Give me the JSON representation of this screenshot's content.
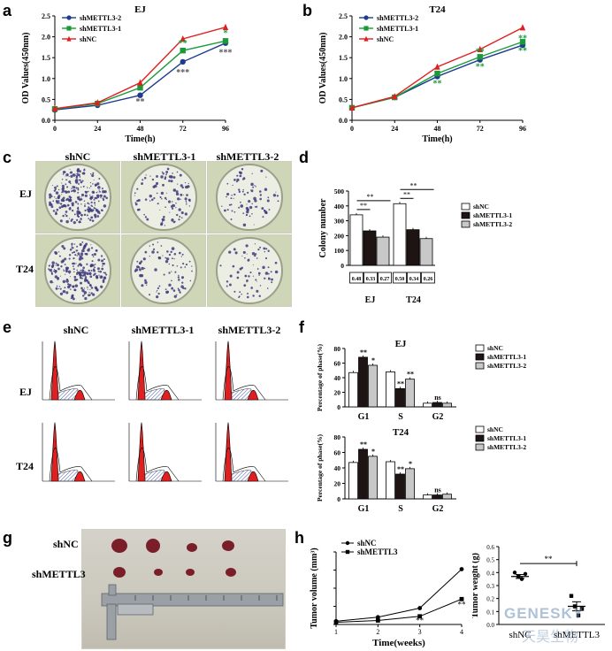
{
  "panels": {
    "a": {
      "label": "a"
    },
    "b": {
      "label": "b"
    },
    "c": {
      "label": "c",
      "cols": [
        "shNC",
        "shMETTL3-1",
        "shMETTL3-2"
      ],
      "rows": [
        "EJ",
        "T24"
      ]
    },
    "d": {
      "label": "d"
    },
    "e": {
      "label": "e",
      "cols": [
        "shNC",
        "shMETTL3-1",
        "shMETTL3-2"
      ],
      "rows": [
        "EJ",
        "T24"
      ]
    },
    "f": {
      "label": "f"
    },
    "g": {
      "label": "g",
      "rows": [
        "shNC",
        "shMETTL3"
      ]
    },
    "h": {
      "label": "h"
    }
  },
  "watermark": {
    "text": "GENESKY",
    "subtext": "天昊生物"
  },
  "chart_data": [
    {
      "id": "a",
      "type": "line",
      "title": "EJ",
      "xlabel": "Time(h)",
      "ylabel": "OD Values(450nm)",
      "x": [
        0,
        24,
        48,
        72,
        96
      ],
      "xlim": [
        0,
        96
      ],
      "ylim": [
        0,
        2.5
      ],
      "yticks": [
        "0.0",
        "0.5",
        "1.0",
        "1.5",
        "2.0",
        "2.5"
      ],
      "legend": "top-left",
      "series": [
        {
          "name": "shMETTL3-2",
          "color": "#1f3c8f",
          "marker": "circle",
          "values": [
            0.25,
            0.36,
            0.6,
            1.4,
            1.85
          ]
        },
        {
          "name": "shMETTL3-1",
          "color": "#1a9b3a",
          "marker": "square",
          "values": [
            0.27,
            0.4,
            0.78,
            1.67,
            1.9
          ]
        },
        {
          "name": "shNC",
          "color": "#e0201f",
          "marker": "triangle",
          "values": [
            0.28,
            0.42,
            0.9,
            1.95,
            2.23
          ]
        }
      ],
      "annotations": [
        {
          "x": 48,
          "y": 0.38,
          "text": "**",
          "color": "#555555"
        },
        {
          "x": 72,
          "y": 1.78,
          "text": "**",
          "color": "#1a9b3a"
        },
        {
          "x": 72,
          "y": 1.08,
          "text": "***",
          "color": "#555555"
        },
        {
          "x": 96,
          "y": 2.02,
          "text": "*",
          "color": "#1a9b3a"
        },
        {
          "x": 96,
          "y": 1.56,
          "text": "***",
          "color": "#555555"
        }
      ]
    },
    {
      "id": "b",
      "type": "line",
      "title": "T24",
      "xlabel": "Time(h)",
      "ylabel": "OD Values(450nm)",
      "x": [
        0,
        24,
        48,
        72,
        96
      ],
      "xlim": [
        0,
        96
      ],
      "ylim": [
        0,
        2.5
      ],
      "yticks": [
        "0.0",
        "0.5",
        "1.0",
        "1.5",
        "2.0",
        "2.5"
      ],
      "legend": "top-left",
      "series": [
        {
          "name": "shMETTL3-2",
          "color": "#1f3c8f",
          "marker": "circle",
          "values": [
            0.3,
            0.55,
            1.05,
            1.45,
            1.8
          ]
        },
        {
          "name": "shMETTL3-1",
          "color": "#1a9b3a",
          "marker": "square",
          "values": [
            0.3,
            0.55,
            1.12,
            1.52,
            1.88
          ]
        },
        {
          "name": "shNC",
          "color": "#e0201f",
          "marker": "triangle",
          "values": [
            0.3,
            0.57,
            1.28,
            1.7,
            2.22
          ]
        }
      ],
      "annotations": [
        {
          "x": 48,
          "y": 0.82,
          "text": "**",
          "color": "#1a9b3a"
        },
        {
          "x": 72,
          "y": 1.58,
          "text": "**",
          "color": "#1a9b3a"
        },
        {
          "x": 72,
          "y": 1.22,
          "text": "**",
          "color": "#1a9b3a"
        },
        {
          "x": 96,
          "y": 1.9,
          "text": "**",
          "color": "#1a9b3a"
        },
        {
          "x": 96,
          "y": 1.6,
          "text": "**",
          "color": "#1a9b3a"
        }
      ]
    },
    {
      "id": "d",
      "type": "bar",
      "ylabel": "Colony number",
      "categories": [
        "EJ",
        "T24"
      ],
      "ylim": [
        0,
        500
      ],
      "yticks": [
        "0",
        "100",
        "200",
        "300",
        "400",
        "500"
      ],
      "legend": "right",
      "series": [
        {
          "name": "shNC",
          "color": "#ffffff",
          "values": [
            340,
            415
          ]
        },
        {
          "name": "shMETTL3-1",
          "color": "#1e1414",
          "values": [
            232,
            240
          ]
        },
        {
          "name": "shMETTL3-2",
          "color": "#c8c8c8",
          "values": [
            190,
            180
          ]
        }
      ],
      "boxes": [
        [
          "0.48",
          "0.33",
          "0.27"
        ],
        [
          "0.50",
          "0.34",
          "0.26"
        ]
      ],
      "significance": "**"
    },
    {
      "id": "f1",
      "type": "bar",
      "title": "EJ",
      "ylabel": "Percentage of phase(%)",
      "categories": [
        "G1",
        "S",
        "G2"
      ],
      "ylim": [
        0,
        80
      ],
      "yticks": [
        "0",
        "20",
        "40",
        "60",
        "80"
      ],
      "legend": "top-right",
      "series": [
        {
          "name": "shNC",
          "color": "#ffffff",
          "values": [
            47,
            48,
            5
          ]
        },
        {
          "name": "shMETTL3-1",
          "color": "#1e1414",
          "values": [
            68,
            25,
            6
          ]
        },
        {
          "name": "shMETTL3-2",
          "color": "#c8c8c8",
          "values": [
            57,
            38,
            5
          ]
        }
      ],
      "marks": [
        [
          "",
          "**",
          "*"
        ],
        [
          "",
          "**",
          "**"
        ],
        [
          "",
          "ns",
          ""
        ]
      ]
    },
    {
      "id": "f2",
      "type": "bar",
      "title": "T24",
      "ylabel": "Percentage of phase(%)",
      "categories": [
        "G1",
        "S",
        "G2"
      ],
      "ylim": [
        0,
        80
      ],
      "yticks": [
        "0",
        "20",
        "40",
        "60",
        "80"
      ],
      "legend": "top-right",
      "series": [
        {
          "name": "shNC",
          "color": "#ffffff",
          "values": [
            47,
            48,
            5
          ]
        },
        {
          "name": "shMETTL3-1",
          "color": "#1e1414",
          "values": [
            64,
            32,
            5
          ]
        },
        {
          "name": "shMETTL3-2",
          "color": "#c8c8c8",
          "values": [
            55,
            39,
            6
          ]
        }
      ],
      "marks": [
        [
          "",
          "**",
          "*"
        ],
        [
          "",
          "**",
          "*"
        ],
        [
          "",
          "ns",
          ""
        ]
      ]
    },
    {
      "id": "h1",
      "type": "line",
      "xlabel": "Time(weeks)",
      "ylabel": "Tumor volume (mm³)",
      "x": [
        1,
        2,
        3,
        4
      ],
      "xlim": [
        1,
        4
      ],
      "ylim": [
        0,
        400
      ],
      "yticks": [
        "0",
        "100",
        "200",
        "300",
        "400"
      ],
      "legend": "top-left",
      "series": [
        {
          "name": "shNC",
          "color": "#000000",
          "marker": "circle",
          "values": [
            18,
            40,
            90,
            305
          ]
        },
        {
          "name": "shMETTL3",
          "color": "#000000",
          "marker": "square",
          "values": [
            12,
            22,
            45,
            140
          ]
        }
      ],
      "annotations": [
        {
          "x": 3,
          "y": 8,
          "text": "**",
          "color": "#000000"
        },
        {
          "x": 4,
          "y": 95,
          "text": "**",
          "color": "#000000"
        }
      ]
    },
    {
      "id": "h2",
      "type": "scatter",
      "ylabel": "Tumor weight (g)",
      "categories": [
        "shNC",
        "shMETTL3"
      ],
      "ylim": [
        0,
        0.6
      ],
      "yticks": [
        "0.0",
        "0.1",
        "0.2",
        "0.3",
        "0.4",
        "0.5",
        "0.6"
      ],
      "series": [
        {
          "name": "shNC",
          "marker": "circle",
          "values": [
            0.4,
            0.37,
            0.35,
            0.39
          ],
          "mean": 0.37,
          "sem": 0.015
        },
        {
          "name": "shMETTL3",
          "marker": "square",
          "values": [
            0.22,
            0.14,
            0.07,
            0.12
          ],
          "mean": 0.14,
          "sem": 0.035
        }
      ],
      "significance": "**"
    }
  ]
}
